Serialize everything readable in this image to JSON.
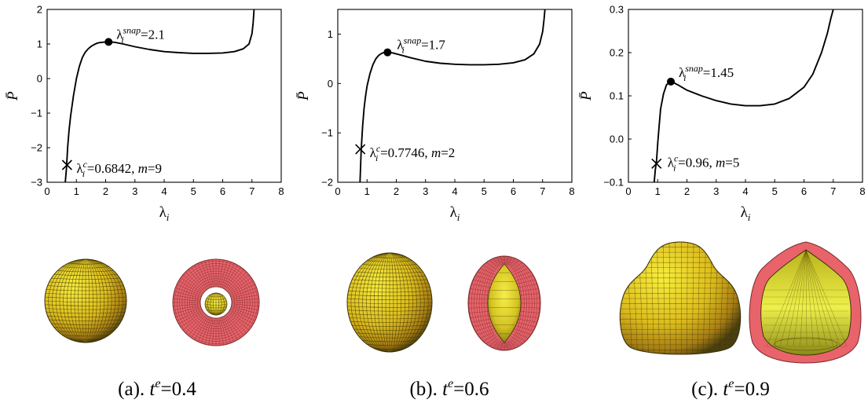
{
  "chart_data": [
    {
      "type": "line",
      "xlabel": "λ_i",
      "ylabel": "P̄",
      "xlim": [
        0,
        8
      ],
      "ylim": [
        -3,
        2
      ],
      "xticks": [
        "0",
        "1",
        "2",
        "3",
        "4",
        "5",
        "6",
        "7",
        "8"
      ],
      "yticks": [
        "−3",
        "−2",
        "−1",
        "0",
        "1",
        "2"
      ],
      "ytick_values": [
        -3,
        -2,
        -1,
        0,
        1,
        2
      ],
      "series": [
        {
          "x": [
            0.62,
            0.66,
            0.7,
            0.75,
            0.8,
            0.9,
            1.0,
            1.1,
            1.2,
            1.3,
            1.4,
            1.5,
            1.6,
            1.7,
            1.8,
            1.9,
            2.0,
            2.1,
            2.3,
            2.6,
            3.0,
            3.5,
            4.0,
            4.5,
            5.0,
            5.5,
            6.0,
            6.4,
            6.7,
            6.9,
            7.0,
            7.04,
            7.06,
            7.07
          ],
          "y": [
            -3.0,
            -2.6,
            -2.0,
            -1.5,
            -1.1,
            -0.5,
            0.0,
            0.35,
            0.6,
            0.76,
            0.86,
            0.93,
            0.98,
            1.02,
            1.04,
            1.05,
            1.06,
            1.06,
            1.05,
            1.0,
            0.92,
            0.84,
            0.78,
            0.75,
            0.73,
            0.73,
            0.74,
            0.78,
            0.86,
            1.0,
            1.3,
            1.6,
            1.85,
            2.0
          ]
        }
      ],
      "markers": [
        {
          "kind": "dot",
          "x": 2.1,
          "y": 1.06,
          "sym": "λ",
          "sub": "i",
          "sup": "snap",
          "value": "=2.1"
        },
        {
          "kind": "cross",
          "x": 0.68,
          "y": -2.5,
          "sym": "λ",
          "sub": "i",
          "sup": "c",
          "value": "=0.6842, ",
          "m_label": "m",
          "m_value": "=9"
        }
      ]
    },
    {
      "type": "line",
      "xlabel": "λ_i",
      "ylabel": "P̄",
      "xlim": [
        0,
        8
      ],
      "ylim": [
        -2,
        1.5
      ],
      "xticks": [
        "0",
        "1",
        "2",
        "3",
        "4",
        "5",
        "6",
        "7",
        "8"
      ],
      "yticks": [
        "−2",
        "−1",
        "0",
        "1"
      ],
      "ytick_values": [
        -2,
        -1,
        0,
        1
      ],
      "series": [
        {
          "x": [
            0.76,
            0.8,
            0.85,
            0.9,
            0.95,
            1.0,
            1.1,
            1.2,
            1.3,
            1.4,
            1.5,
            1.6,
            1.7,
            1.8,
            2.0,
            2.5,
            3.0,
            3.5,
            4.0,
            4.5,
            5.0,
            5.5,
            6.0,
            6.4,
            6.7,
            6.9,
            7.0,
            7.05,
            7.08
          ],
          "y": [
            -2.0,
            -1.35,
            -0.85,
            -0.5,
            -0.25,
            -0.05,
            0.2,
            0.38,
            0.5,
            0.57,
            0.61,
            0.63,
            0.64,
            0.63,
            0.6,
            0.52,
            0.45,
            0.41,
            0.39,
            0.38,
            0.38,
            0.39,
            0.42,
            0.48,
            0.6,
            0.8,
            1.05,
            1.3,
            1.5
          ]
        }
      ],
      "markers": [
        {
          "kind": "dot",
          "x": 1.7,
          "y": 0.63,
          "sym": "λ",
          "sub": "i",
          "sup": "snap",
          "value": "=1.7"
        },
        {
          "kind": "cross",
          "x": 0.77,
          "y": -1.33,
          "sym": "λ",
          "sub": "i",
          "sup": "c",
          "value": "=0.7746, ",
          "m_label": "m",
          "m_value": "=2"
        }
      ]
    },
    {
      "type": "line",
      "xlabel": "λ_i",
      "ylabel": "P̄",
      "xlim": [
        0,
        8
      ],
      "ylim": [
        -0.1,
        0.3
      ],
      "xticks": [
        "0",
        "1",
        "2",
        "3",
        "4",
        "5",
        "6",
        "7",
        "8"
      ],
      "yticks": [
        "−0.1",
        "0.0",
        "0.1",
        "0.2",
        "0.3"
      ],
      "ytick_values": [
        -0.1,
        0,
        0.1,
        0.2,
        0.3
      ],
      "series": [
        {
          "x": [
            0.88,
            0.92,
            0.96,
            1.0,
            1.05,
            1.1,
            1.2,
            1.3,
            1.4,
            1.45,
            1.5,
            1.7,
            2.0,
            2.5,
            3.0,
            3.5,
            4.0,
            4.5,
            5.0,
            5.5,
            6.0,
            6.3,
            6.6,
            6.8,
            6.92,
            7.0
          ],
          "y": [
            -0.1,
            -0.07,
            -0.05,
            -0.01,
            0.03,
            0.07,
            0.105,
            0.125,
            0.132,
            0.133,
            0.132,
            0.125,
            0.113,
            0.1,
            0.089,
            0.081,
            0.077,
            0.077,
            0.081,
            0.094,
            0.12,
            0.15,
            0.2,
            0.245,
            0.28,
            0.3
          ]
        }
      ],
      "markers": [
        {
          "kind": "dot",
          "x": 1.45,
          "y": 0.133,
          "sym": "λ",
          "sub": "i",
          "sup": "snap",
          "value": "=1.45"
        },
        {
          "kind": "cross",
          "x": 0.96,
          "y": -0.057,
          "sym": "λ",
          "sub": "i",
          "sup": "c",
          "value": "=0.96, ",
          "m_label": "m",
          "m_value": "=5"
        }
      ]
    }
  ],
  "captions": [
    {
      "prefix": "(a). ",
      "var": "t",
      "sup": "e",
      "value": "=0.4"
    },
    {
      "prefix": "(b). ",
      "var": "t",
      "sup": "e",
      "value": "=0.6"
    },
    {
      "prefix": "(c). ",
      "var": "t",
      "sup": "e",
      "value": "=0.9"
    }
  ],
  "colors": {
    "line": "#000000",
    "sphere_light": "#f6ec3a",
    "sphere_mid": "#d9b21a",
    "sphere_dark": "#5a4d10",
    "mesh_red": "#e8646a",
    "mesh_red_dark": "#b8343c"
  }
}
